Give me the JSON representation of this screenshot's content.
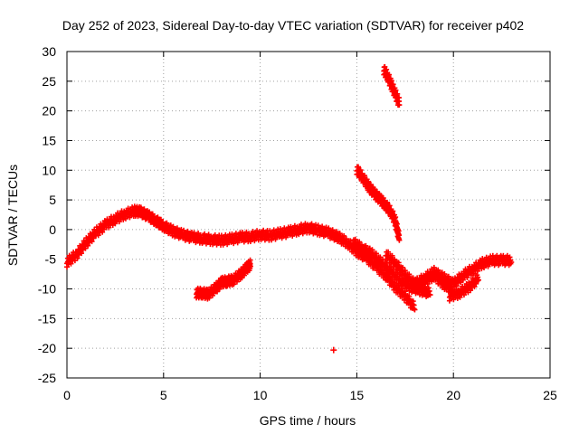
{
  "chart_data": {
    "type": "scatter",
    "title": "Day 252 of 2023, Sidereal Day-to-day VTEC variation (SDTVAR) for receiver p402",
    "xlabel": "GPS time / hours",
    "ylabel": "SDTVAR / TECUs",
    "xlim": [
      0,
      25
    ],
    "ylim": [
      -25,
      30
    ],
    "xticks": [
      0,
      5,
      10,
      15,
      20,
      25
    ],
    "yticks": [
      -25,
      -20,
      -15,
      -10,
      -5,
      0,
      5,
      10,
      15,
      20,
      25,
      30
    ],
    "grid": true,
    "marker": "+",
    "color": "#ff0000",
    "series": [
      {
        "name": "track-main",
        "x": [
          0.0,
          0.5,
          1.0,
          1.5,
          2.0,
          2.5,
          3.0,
          3.5,
          3.8,
          4.2,
          4.6,
          5.0,
          5.5,
          6.0,
          6.5,
          7.0,
          7.5,
          8.0,
          8.5,
          9.0,
          9.5,
          10.0,
          10.5,
          11.0,
          11.5,
          12.0,
          12.5,
          13.0,
          13.5,
          14.0
        ],
        "y": [
          -5.8,
          -4.5,
          -2.5,
          -0.8,
          0.5,
          1.5,
          2.3,
          2.8,
          2.7,
          2.0,
          1.2,
          0.3,
          -0.6,
          -1.2,
          -1.6,
          -1.8,
          -2.0,
          -2.1,
          -1.9,
          -1.6,
          -1.5,
          -1.2,
          -1.3,
          -1.0,
          -0.7,
          -0.3,
          0.0,
          -0.4,
          -0.8,
          -1.5
        ]
      },
      {
        "name": "track-dip",
        "x": [
          14.0,
          14.5,
          15.0,
          15.5,
          16.0,
          16.5,
          17.0,
          17.5,
          18.0
        ],
        "y": [
          -1.5,
          -2.5,
          -4.0,
          -5.0,
          -6.5,
          -8.0,
          -10.0,
          -11.5,
          -13.5
        ]
      },
      {
        "name": "track-mid",
        "x": [
          14.8,
          15.3,
          15.8,
          16.3,
          16.8,
          17.3,
          17.8,
          18.3,
          18.8
        ],
        "y": [
          -2.5,
          -3.5,
          -4.5,
          -6.0,
          -7.5,
          -9.0,
          -10.0,
          -10.5,
          -11.0
        ]
      },
      {
        "name": "track-right",
        "x": [
          16.5,
          17.0,
          17.5,
          18.0,
          18.5,
          19.0,
          19.5,
          20.0
        ],
        "y": [
          -4.5,
          -6.0,
          -8.0,
          -9.5,
          -9.0,
          -8.0,
          -9.5,
          -10.5
        ]
      },
      {
        "name": "track-tail",
        "x": [
          18.0,
          18.5,
          19.0,
          19.5,
          20.0,
          20.5,
          21.0,
          21.5,
          22.0,
          22.5,
          23.0
        ],
        "y": [
          -9.5,
          -8.5,
          -7.5,
          -8.5,
          -9.5,
          -8.0,
          -7.0,
          -6.0,
          -5.5,
          -5.5,
          -5.5
        ]
      },
      {
        "name": "track-tail-low",
        "x": [
          19.8,
          20.3,
          20.8,
          21.3
        ],
        "y": [
          -11.5,
          -11.0,
          -10.0,
          -8.5
        ]
      },
      {
        "name": "track-lower",
        "x": [
          6.7,
          7.0,
          7.3,
          7.7,
          8.0,
          8.3,
          8.6,
          9.0,
          9.3,
          9.5
        ],
        "y": [
          -11.0,
          -11.0,
          -11.2,
          -10.2,
          -9.2,
          -9.0,
          -8.8,
          -7.8,
          -6.8,
          -6.2
        ]
      },
      {
        "name": "track-upper",
        "x": [
          16.4,
          16.6,
          16.8,
          17.0,
          17.2
        ],
        "y": [
          26.6,
          25.5,
          24.0,
          22.5,
          21.0
        ]
      },
      {
        "name": "track-descend",
        "x": [
          15.0,
          15.3,
          15.6,
          15.9,
          16.2,
          16.5,
          16.8,
          17.0,
          17.2
        ],
        "y": [
          9.8,
          8.5,
          7.0,
          5.8,
          4.8,
          3.8,
          2.5,
          1.0,
          -1.8
        ]
      },
      {
        "name": "outlier",
        "x": [
          13.8
        ],
        "y": [
          -20.3
        ]
      }
    ]
  }
}
